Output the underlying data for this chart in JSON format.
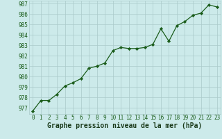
{
  "x": [
    0,
    1,
    2,
    3,
    4,
    5,
    6,
    7,
    8,
    9,
    10,
    11,
    12,
    13,
    14,
    15,
    16,
    17,
    18,
    19,
    20,
    21,
    22,
    23
  ],
  "y": [
    976.7,
    977.7,
    977.7,
    978.3,
    979.1,
    979.4,
    979.8,
    980.8,
    981.0,
    981.3,
    982.5,
    982.8,
    982.7,
    982.7,
    982.8,
    983.1,
    984.6,
    983.4,
    984.9,
    985.3,
    985.9,
    986.1,
    986.9,
    986.7
  ],
  "line_color": "#1a5c1a",
  "marker": "D",
  "marker_size": 2.2,
  "bg_color": "#cceaea",
  "grid_color": "#aacaca",
  "xlabel": "Graphe pression niveau de la mer (hPa)",
  "xlabel_fontsize": 7,
  "xlabel_color": "#1a3a1a",
  "ylabel_ticks": [
    977,
    978,
    979,
    980,
    981,
    982,
    983,
    984,
    985,
    986,
    987
  ],
  "xlim": [
    -0.5,
    23.5
  ],
  "ylim": [
    976.4,
    987.3
  ],
  "tick_fontsize": 5.5,
  "tick_color": "#1a5c1a",
  "linewidth": 0.9
}
